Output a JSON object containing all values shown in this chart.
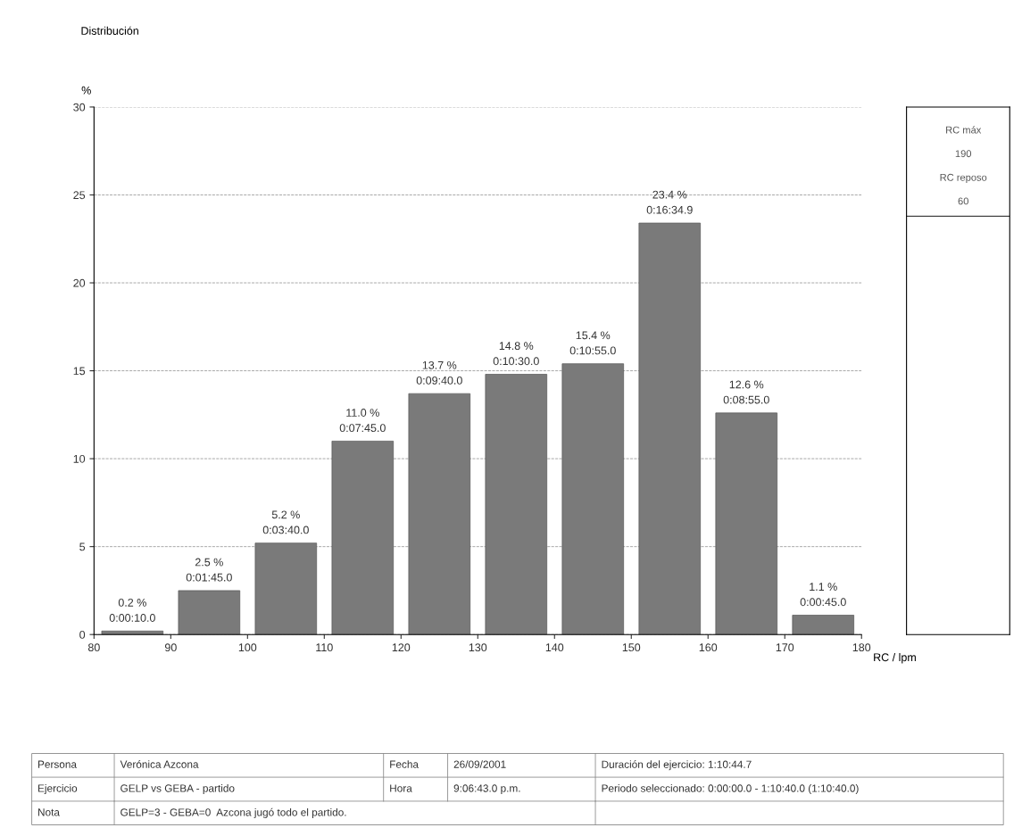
{
  "chart_data": {
    "type": "histogram",
    "title": "Distribución",
    "ylabel": "%",
    "xlabel": "RC / lpm",
    "bins": [
      80,
      90,
      100,
      110,
      120,
      130,
      140,
      150,
      160,
      170,
      180
    ],
    "values": [
      0.2,
      2.5,
      5.2,
      11.0,
      13.7,
      14.8,
      15.4,
      23.4,
      12.6,
      1.1
    ],
    "value_labels": [
      "0.2 %\n0:00:10.0",
      "2.5 %\n0:01:45.0",
      "5.2 %\n0:03:40.0",
      "11.0 %\n0:07:45.0",
      "13.7 %\n0:09:40.0",
      "14.8 %\n0:10:30.0",
      "15.4 %\n0:10:55.0",
      "23.4 %\n0:16:34.9",
      "12.6 %\n0:08:55.0",
      "1.1 %\n0:00:45.0"
    ],
    "color": "#7a7a7a",
    "xlim": [
      80,
      180
    ],
    "xticks": [
      80,
      90,
      100,
      110,
      120,
      130,
      140,
      150,
      160,
      170,
      180
    ],
    "ylim": [
      0,
      30
    ],
    "yticks": [
      0,
      5,
      10,
      15,
      20,
      25,
      30
    ],
    "grid": "y",
    "annotations": [
      "RC máx",
      "190",
      "RC reposo",
      "60",
      "Persona",
      "Verónica Azcona",
      "Fecha",
      "26/09/2001",
      "Duración del ejercicio: 1:10:44.7",
      "Ejercicio",
      "GELP vs GEBA - partido",
      "Hora",
      "9:06:43.0 p.m.",
      "Periodo seleccionado: 0:00:00.0 - 1:10:40.0 (1:10:40.0)",
      "Nota",
      "GELP=3 - GEBA=0  Azcona jugó todo el partido."
    ]
  }
}
